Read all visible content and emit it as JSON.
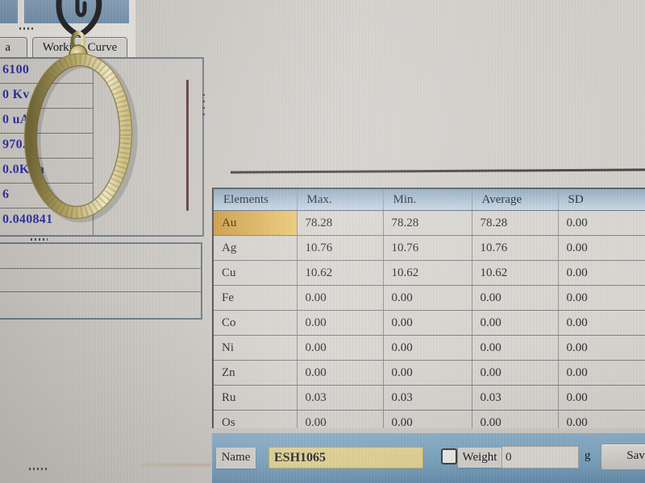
{
  "left_panel": {
    "tabs": [
      {
        "label": "a",
        "note": "partially visible tab"
      },
      {
        "label": "Working Curve"
      }
    ],
    "readouts": [
      "6100",
      "0 Kv",
      "0 uA",
      "970.6",
      "0.0KPa",
      "6",
      "0.040841"
    ]
  },
  "results_table": {
    "headers": [
      "Elements",
      "Max.",
      "Min.",
      "Average",
      "SD"
    ],
    "rows": [
      {
        "element": "Au",
        "max": "78.28",
        "min": "78.28",
        "average": "78.28",
        "sd": "0.00",
        "highlight": true
      },
      {
        "element": "Ag",
        "max": "10.76",
        "min": "10.76",
        "average": "10.76",
        "sd": "0.00"
      },
      {
        "element": "Cu",
        "max": "10.62",
        "min": "10.62",
        "average": "10.62",
        "sd": "0.00"
      },
      {
        "element": "Fe",
        "max": "0.00",
        "min": "0.00",
        "average": "0.00",
        "sd": "0.00"
      },
      {
        "element": "Co",
        "max": "0.00",
        "min": "0.00",
        "average": "0.00",
        "sd": "0.00"
      },
      {
        "element": "Ni",
        "max": "0.00",
        "min": "0.00",
        "average": "0.00",
        "sd": "0.00"
      },
      {
        "element": "Zn",
        "max": "0.00",
        "min": "0.00",
        "average": "0.00",
        "sd": "0.00"
      },
      {
        "element": "Ru",
        "max": "0.03",
        "min": "0.03",
        "average": "0.03",
        "sd": "0.00"
      },
      {
        "element": "Os",
        "max": "0.00",
        "min": "0.00",
        "average": "0.00",
        "sd": "0.00"
      }
    ]
  },
  "bottom_bar": {
    "name_label": "Name",
    "name_value": "ESH1065",
    "weight_label": "Weight",
    "weight_value": "0",
    "unit": "g",
    "save_label": "Save"
  },
  "foreground_object": {
    "description": "gold oval pendant bezel hanging from a dark metal hook in front of the screen"
  },
  "colors": {
    "screen_gray": "#cfccc7",
    "bar_blue": "#7ba6c4",
    "header_blue": "#a9c0d4",
    "gold_highlight": "#e2b254",
    "input_yellow": "#e8d795",
    "readout_blue": "#2c2ea0",
    "maroon_line": "#5e3537",
    "thumbnail_blue": "#7795b0"
  }
}
